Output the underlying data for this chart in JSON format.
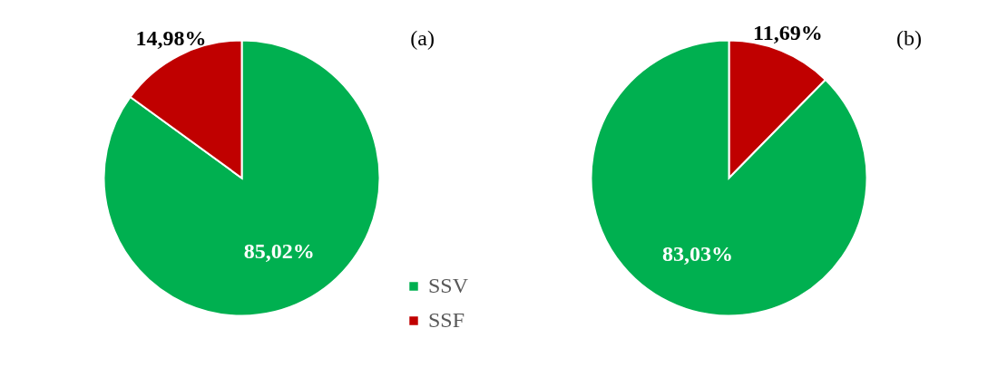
{
  "chart_data": [
    {
      "type": "pie",
      "title": "(a)",
      "categories": [
        "SSV",
        "SSF"
      ],
      "values": [
        85.02,
        14.98
      ],
      "colors": [
        "#00b050",
        "#c00000"
      ],
      "value_labels": [
        "85,02%",
        "14,98%"
      ],
      "legend": "bottom right"
    },
    {
      "type": "pie",
      "title": "(b)",
      "categories": [
        null,
        null
      ],
      "values": [
        11.69,
        83.03
      ],
      "colors": [
        "#c00000",
        "#00b050"
      ],
      "value_labels": [
        "11,69%",
        "83,03%"
      ],
      "legend": false
    }
  ]
}
